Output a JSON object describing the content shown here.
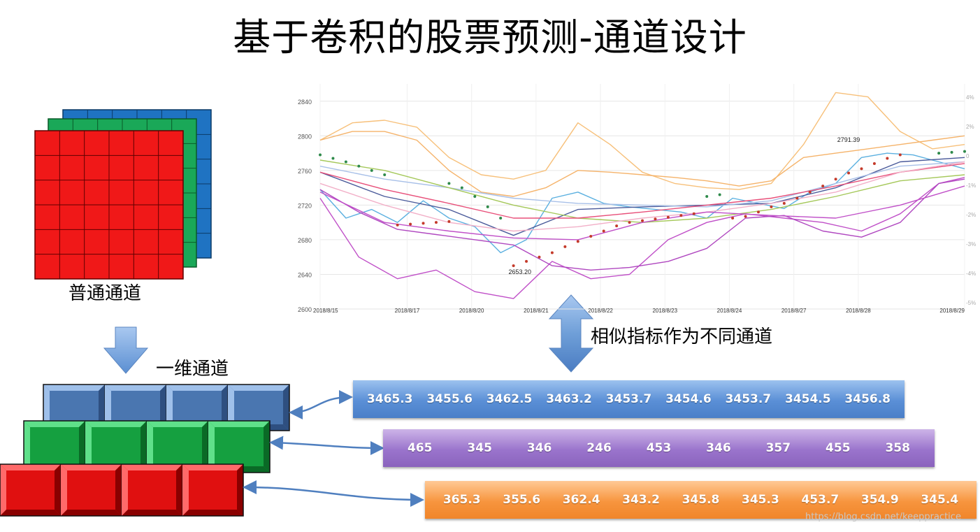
{
  "title": "基于卷积的股票预测-通道设计",
  "captions": {
    "normal_channel": "普通通道",
    "one_dim_channel": "一维通道",
    "similar_indicators": "相似指标作为不同通道"
  },
  "rows": {
    "blue": [
      "3465.3",
      "3455.6",
      "3462.5",
      "3463.2",
      "3453.7",
      "3454.6",
      "3453.7",
      "3454.5",
      "3456.8"
    ],
    "purple": [
      "465",
      "345",
      "346",
      "246",
      "453",
      "346",
      "357",
      "455",
      "358"
    ],
    "orange": [
      "365.3",
      "355.6",
      "362.4",
      "343.2",
      "345.8",
      "345.3",
      "453.7",
      "354.9",
      "345.4"
    ]
  },
  "colors": {
    "grid_blue": "#1f73c2",
    "grid_green": "#1aa858",
    "grid_red": "#f01818",
    "block_blue": "#4a76b0",
    "block_green": "#15a040",
    "block_red": "#e01010",
    "arrow": "#6f9fd8"
  },
  "chart_data": {
    "type": "line",
    "y_ticks": [
      "2840",
      "2800",
      "2760",
      "2720",
      "2680",
      "2640",
      "2600"
    ],
    "y2_ticks": [
      "4%",
      "2%",
      "0",
      "-1%",
      "-2%",
      "-3%",
      "-4%",
      "-5%"
    ],
    "x_ticks": [
      "2018/8/15",
      "2018/8/17",
      "2018/8/20",
      "2018/8/21",
      "2018/8/22",
      "2018/8/23",
      "2018/8/24",
      "2018/8/27",
      "2018/8/28",
      "2018/8/29"
    ],
    "ylim": [
      2600,
      2860
    ],
    "annotations": [
      {
        "text": "2653.20",
        "x": 3.1,
        "y": 2653.2
      },
      {
        "text": "2791.39",
        "x": 8.2,
        "y": 2791.39
      }
    ],
    "series": [
      {
        "color": "#f7c07a",
        "x": [
          0,
          0.5,
          1,
          1.5,
          2,
          2.5,
          3,
          3.5,
          4,
          4.5,
          5,
          5.5,
          6,
          6.5,
          7,
          7.5,
          8,
          8.5,
          9,
          9.5,
          10
        ],
        "values": [
          2795,
          2815,
          2818,
          2810,
          2775,
          2755,
          2750,
          2760,
          2815,
          2790,
          2758,
          2745,
          2740,
          2738,
          2745,
          2790,
          2850,
          2845,
          2805,
          2785,
          2790
        ]
      },
      {
        "color": "#f5b36a",
        "x": [
          0,
          0.5,
          1,
          1.5,
          2,
          2.5,
          3,
          3.5,
          4,
          4.5,
          5,
          5.5,
          6,
          6.5,
          7,
          7.5,
          8,
          8.5,
          9,
          9.5,
          10
        ],
        "values": [
          2795,
          2805,
          2805,
          2795,
          2760,
          2735,
          2730,
          2740,
          2760,
          2758,
          2755,
          2752,
          2748,
          2742,
          2748,
          2775,
          2780,
          2785,
          2790,
          2795,
          2800
        ]
      },
      {
        "color": "#5bb0e0",
        "x": [
          0,
          0.4,
          0.8,
          1.2,
          1.6,
          2,
          2.4,
          2.8,
          3.2,
          3.6,
          4,
          4.4,
          4.8,
          5.2,
          5.6,
          6,
          6.4,
          6.8,
          7.2,
          7.6,
          8,
          8.4,
          8.8,
          9.2,
          9.6,
          10
        ],
        "values": [
          2738,
          2705,
          2715,
          2700,
          2725,
          2705,
          2695,
          2665,
          2680,
          2728,
          2735,
          2722,
          2718,
          2715,
          2712,
          2705,
          2728,
          2722,
          2716,
          2735,
          2745,
          2775,
          2780,
          2778,
          2770,
          2762
        ]
      },
      {
        "color": "#4a5a9a",
        "x": [
          0,
          1,
          2,
          3,
          4,
          5,
          6,
          7,
          8,
          9,
          10
        ],
        "values": [
          2758,
          2730,
          2715,
          2685,
          2715,
          2718,
          2720,
          2722,
          2740,
          2770,
          2775
        ]
      },
      {
        "color": "#a8c0e8",
        "x": [
          0,
          1,
          2,
          3,
          4,
          5,
          6,
          7,
          8,
          9,
          10
        ],
        "values": [
          2765,
          2750,
          2740,
          2728,
          2722,
          2720,
          2718,
          2725,
          2745,
          2765,
          2770
        ]
      },
      {
        "color": "#a5c85a",
        "x": [
          0,
          1,
          2,
          3,
          4,
          5,
          6,
          7,
          8,
          9,
          10
        ],
        "values": [
          2772,
          2760,
          2740,
          2720,
          2705,
          2700,
          2705,
          2715,
          2730,
          2748,
          2755
        ]
      },
      {
        "color": "#e8507a",
        "x": [
          0,
          1,
          2,
          3,
          4,
          5,
          6,
          7,
          8,
          9,
          10
        ],
        "values": [
          2758,
          2738,
          2722,
          2705,
          2705,
          2712,
          2720,
          2728,
          2742,
          2758,
          2768
        ]
      },
      {
        "color": "#f2b0c8",
        "x": [
          0,
          1,
          2,
          3,
          4,
          5,
          6,
          7,
          8,
          9,
          10
        ],
        "values": [
          2745,
          2720,
          2700,
          2690,
          2695,
          2705,
          2712,
          2722,
          2735,
          2758,
          2770
        ]
      },
      {
        "color": "#c050c8",
        "x": [
          0,
          0.6,
          1.2,
          1.8,
          2.4,
          3,
          3.6,
          4.2,
          4.8,
          5.4,
          6,
          6.6,
          7.2,
          7.8,
          8.4,
          9,
          9.6,
          10
        ],
        "values": [
          2728,
          2660,
          2635,
          2645,
          2620,
          2612,
          2655,
          2635,
          2640,
          2680,
          2700,
          2710,
          2705,
          2700,
          2690,
          2710,
          2745,
          2752
        ]
      },
      {
        "color": "#b048c0",
        "x": [
          0,
          0.6,
          1.2,
          1.8,
          2.4,
          3,
          3.6,
          4.2,
          4.8,
          5.4,
          6,
          6.6,
          7.2,
          7.8,
          8.4,
          9,
          9.6,
          10
        ],
        "values": [
          2738,
          2712,
          2692,
          2686,
          2680,
          2674,
          2650,
          2645,
          2648,
          2655,
          2670,
          2705,
          2708,
          2690,
          2683,
          2700,
          2745,
          2750
        ]
      },
      {
        "color": "#c050c8",
        "x": [
          0,
          1,
          2,
          3,
          4,
          5,
          6,
          7,
          8,
          9,
          10
        ],
        "values": [
          2735,
          2700,
          2690,
          2682,
          2680,
          2700,
          2712,
          2708,
          2705,
          2720,
          2742
        ]
      }
    ],
    "dots": [
      {
        "color": "#2e8a4a",
        "x": [
          0,
          0.2,
          0.4,
          0.6,
          0.8,
          1
        ],
        "values": [
          2778,
          2774,
          2770,
          2765,
          2760,
          2755
        ]
      },
      {
        "color": "#2e8a4a",
        "x": [
          2,
          2.2,
          2.4,
          2.6,
          2.8
        ],
        "values": [
          2745,
          2740,
          2730,
          2718,
          2705
        ]
      },
      {
        "color": "#2e8a4a",
        "x": [
          6,
          6.2
        ],
        "values": [
          2730,
          2732
        ]
      },
      {
        "color": "#2e8a4a",
        "x": [
          9.6,
          9.8,
          10
        ],
        "values": [
          2780,
          2781,
          2782
        ]
      },
      {
        "color": "#c43a2a",
        "x": [
          1.2,
          1.4,
          1.6,
          1.8,
          2.0
        ],
        "values": [
          2697,
          2698,
          2699,
          2700,
          2701
        ]
      },
      {
        "color": "#c43a2a",
        "x": [
          3.0,
          3.2,
          3.4,
          3.6,
          3.8,
          4.0,
          4.2,
          4.4,
          4.6,
          4.8,
          5.0,
          5.2,
          5.4,
          5.6,
          5.8
        ],
        "values": [
          2650,
          2655,
          2660,
          2665,
          2672,
          2678,
          2684,
          2690,
          2696,
          2700,
          2702,
          2704,
          2706,
          2708,
          2710
        ]
      },
      {
        "color": "#c43a2a",
        "x": [
          6.4,
          6.6,
          6.8,
          7.0,
          7.2,
          7.4,
          7.6,
          7.8,
          8.0,
          8.2,
          8.4,
          8.6,
          8.8,
          9.0
        ],
        "values": [
          2705,
          2707,
          2712,
          2718,
          2722,
          2728,
          2735,
          2742,
          2750,
          2757,
          2762,
          2768,
          2774,
          2778
        ]
      }
    ]
  }
}
